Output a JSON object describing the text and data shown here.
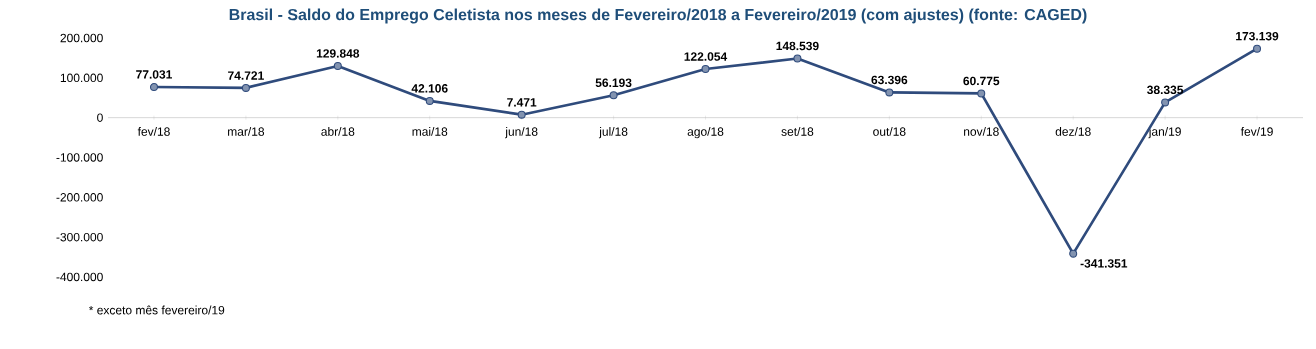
{
  "chart_data": {
    "type": "line",
    "title": "Brasil - Saldo do Emprego Celetista nos meses de Fevereiro/2018 a Fevereiro/2019 (com ajustes) (fonte: CAGED)",
    "categories": [
      "fev/18",
      "mar/18",
      "abr/18",
      "mai/18",
      "jun/18",
      "jul/18",
      "ago/18",
      "set/18",
      "out/18",
      "nov/18",
      "dez/18",
      "jan/19",
      "fev/19"
    ],
    "series": [
      {
        "color": "#2f4b7c",
        "values": [
          77031,
          74721,
          129848,
          42106,
          7471,
          56193,
          122054,
          148539,
          63396,
          60775,
          -341351,
          38335,
          173139
        ],
        "value_labels": [
          "77.031",
          "74.721",
          "129.848",
          "42.106",
          "7.471",
          "56.193",
          "122.054",
          "148.539",
          "63.396",
          "60.775",
          "-341.351",
          "38.335",
          "173.139"
        ]
      }
    ],
    "ylim": [
      -400000,
      200000
    ],
    "yticks": [
      {
        "value": -400000,
        "label": "-400.000"
      },
      {
        "value": -300000,
        "label": "-300.000"
      },
      {
        "value": -200000,
        "label": "-200.000"
      },
      {
        "value": -100000,
        "label": "-100.000"
      },
      0,
      {
        "value": 100000,
        "label": "100.000"
      },
      {
        "value": 200000,
        "label": "200.000"
      }
    ],
    "marker": "circle",
    "line_style": "solid",
    "grid": false,
    "annotations": [
      "* exceto mês fevereiro/19"
    ]
  }
}
